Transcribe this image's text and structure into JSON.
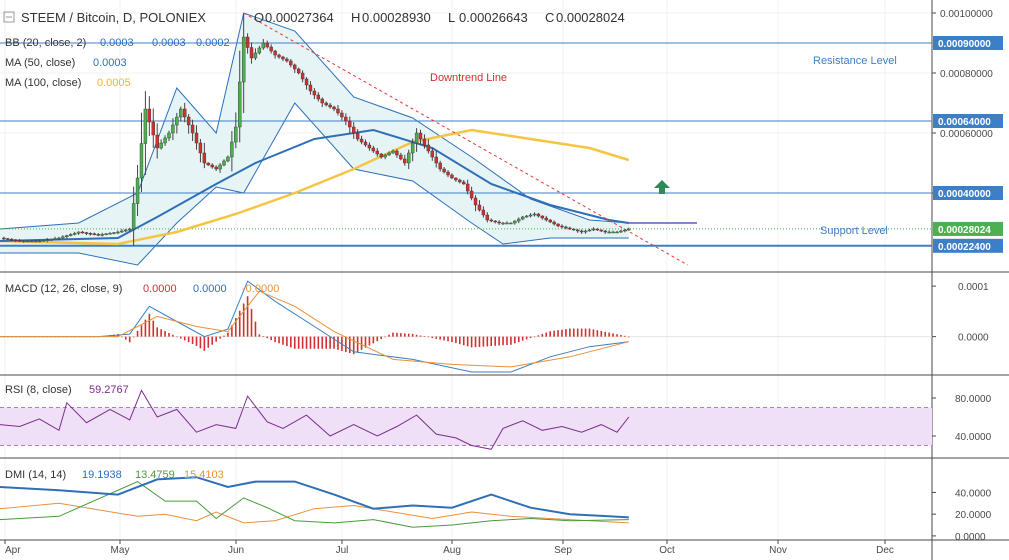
{
  "header": {
    "symbol": "STEEM / Bitcoin, D, POLONIEX",
    "ohlc": [
      {
        "key": "O",
        "value": "0.00027364"
      },
      {
        "key": "H",
        "value": "0.00028930"
      },
      {
        "key": "L",
        "value": "0.00026643"
      },
      {
        "key": "C",
        "value": "0.00028024"
      }
    ]
  },
  "legends": {
    "bb": {
      "name": "BB (20, close, 2)",
      "values": [
        "0.0003",
        "0.0003",
        "0.0002"
      ]
    },
    "ma50": {
      "name": "MA (50, close)",
      "value": "0.0003"
    },
    "ma100": {
      "name": "MA (100, close)",
      "value": "0.0005"
    },
    "macd": {
      "name": "MACD (12, 26, close, 9)",
      "values": [
        "0.0000",
        "0.0000",
        "-0.0000"
      ]
    },
    "rsi": {
      "name": "RSI (8, close)",
      "value": "59.2767"
    },
    "dmi": {
      "name": "DMI (14, 14)",
      "values": [
        "19.1938",
        "13.4759",
        "15.4103"
      ]
    }
  },
  "annotations": {
    "resistance": "Resistance Level",
    "support": "Support Level",
    "downtrend": "Downtrend Line"
  },
  "colors": {
    "up": "#4caf50",
    "down": "#d32f2f",
    "bb": "#2e6fb8",
    "ma50": "#2e6fb8",
    "ma100": "#f5c542",
    "hline": "#3d7fc6",
    "macd_line": "#3d7fc6",
    "signal_line": "#e8913a",
    "hist": "#d32f2f",
    "rsi": "#7b2d8e",
    "rsi_band": "#efe0f7",
    "dmi_plus": "#4a9a3c",
    "dmi_minus": "#e8913a",
    "adx": "#2e6fb8",
    "arrow": "#2e8b57"
  },
  "chart_data": [
    {
      "type": "candlestick",
      "title": "STEEM / Bitcoin, D, POLONIEX",
      "ylim": [
        0.00015,
        0.00103
      ],
      "y_ticks": [
        "0.00100000",
        "0.00080000",
        "0.00060000",
        "0.00040000"
      ],
      "x_ticks": [
        "Apr",
        "May",
        "Jun",
        "Jul",
        "Aug",
        "Sep",
        "Oct",
        "Nov",
        "Dec"
      ],
      "price_path": [
        [
          0,
          0.00025
        ],
        [
          5,
          0.00024
        ],
        [
          10,
          0.00024
        ],
        [
          15,
          0.00025
        ],
        [
          20,
          0.00027
        ],
        [
          25,
          0.00026
        ],
        [
          30,
          0.00027
        ],
        [
          33,
          0.00028
        ],
        [
          35,
          0.00045
        ],
        [
          37,
          0.00068
        ],
        [
          40,
          0.00055
        ],
        [
          43,
          0.0006
        ],
        [
          46,
          0.00068
        ],
        [
          49,
          0.0006
        ],
        [
          52,
          0.0005
        ],
        [
          55,
          0.00048
        ],
        [
          58,
          0.00052
        ],
        [
          60,
          0.00062
        ],
        [
          62,
          0.00092
        ],
        [
          64,
          0.00085
        ],
        [
          67,
          0.0009
        ],
        [
          70,
          0.00086
        ],
        [
          73,
          0.00084
        ],
        [
          76,
          0.0008
        ],
        [
          79,
          0.00074
        ],
        [
          82,
          0.0007
        ],
        [
          85,
          0.00068
        ],
        [
          88,
          0.00064
        ],
        [
          91,
          0.00058
        ],
        [
          94,
          0.00055
        ],
        [
          97,
          0.00052
        ],
        [
          100,
          0.00054
        ],
        [
          103,
          0.0005
        ],
        [
          106,
          0.0006
        ],
        [
          109,
          0.00054
        ],
        [
          112,
          0.00048
        ],
        [
          115,
          0.00045
        ],
        [
          118,
          0.00043
        ],
        [
          121,
          0.00036
        ],
        [
          124,
          0.00031
        ],
        [
          127,
          0.0003
        ],
        [
          130,
          0.0003
        ],
        [
          133,
          0.00032
        ],
        [
          136,
          0.00033
        ],
        [
          139,
          0.00031
        ],
        [
          142,
          0.00029
        ],
        [
          145,
          0.00028
        ],
        [
          148,
          0.00027
        ],
        [
          151,
          0.00028
        ],
        [
          154,
          0.00027
        ],
        [
          157,
          0.00027
        ],
        [
          160,
          0.00028
        ]
      ],
      "bb_upper": [
        [
          0,
          0.00028
        ],
        [
          20,
          0.0003
        ],
        [
          35,
          0.0004
        ],
        [
          45,
          0.00075
        ],
        [
          55,
          0.0006
        ],
        [
          62,
          0.001
        ],
        [
          75,
          0.00094
        ],
        [
          90,
          0.00072
        ],
        [
          105,
          0.00065
        ],
        [
          120,
          0.00052
        ],
        [
          135,
          0.00038
        ],
        [
          150,
          0.00031
        ],
        [
          160,
          0.0003
        ]
      ],
      "bb_lower": [
        [
          0,
          0.0002
        ],
        [
          20,
          0.0002
        ],
        [
          35,
          0.00016
        ],
        [
          45,
          0.0003
        ],
        [
          55,
          0.00042
        ],
        [
          62,
          0.0004
        ],
        [
          75,
          0.0007
        ],
        [
          90,
          0.00048
        ],
        [
          105,
          0.00044
        ],
        [
          120,
          0.0003
        ],
        [
          128,
          0.00023
        ],
        [
          140,
          0.00025
        ],
        [
          160,
          0.00025
        ]
      ],
      "ma50": [
        [
          0,
          0.00024
        ],
        [
          30,
          0.00025
        ],
        [
          40,
          0.00032
        ],
        [
          55,
          0.00043
        ],
        [
          65,
          0.0005
        ],
        [
          80,
          0.00058
        ],
        [
          95,
          0.00061
        ],
        [
          110,
          0.00055
        ],
        [
          125,
          0.00043
        ],
        [
          140,
          0.00036
        ],
        [
          155,
          0.00031
        ],
        [
          160,
          0.0003
        ]
      ],
      "ma100": [
        [
          0,
          0.00024
        ],
        [
          30,
          0.00023
        ],
        [
          45,
          0.00027
        ],
        [
          60,
          0.00033
        ],
        [
          75,
          0.0004
        ],
        [
          90,
          0.00048
        ],
        [
          105,
          0.00057
        ],
        [
          120,
          0.00061
        ],
        [
          135,
          0.00058
        ],
        [
          150,
          0.00055
        ],
        [
          160,
          0.00051
        ]
      ],
      "resistance_1": 0.0009,
      "resistance_2": 0.00064,
      "resistance_3": 0.0004,
      "last_price": 0.00028024,
      "support": 0.000224,
      "downtrend_line": [
        [
          62,
          0.001
        ],
        [
          175,
          0.00016
        ]
      ]
    },
    {
      "type": "line",
      "title": "MACD (12, 26, close, 9)",
      "ylim": [
        -7e-05,
        0.00012
      ],
      "y_ticks": [
        "0.0001",
        "0.0000"
      ],
      "macd": [
        [
          0,
          0.0
        ],
        [
          25,
          0.0
        ],
        [
          33,
          5e-06
        ],
        [
          38,
          6e-05
        ],
        [
          45,
          3e-05
        ],
        [
          52,
          0.0
        ],
        [
          58,
          1.5e-05
        ],
        [
          63,
          0.00011
        ],
        [
          70,
          7e-05
        ],
        [
          80,
          2e-05
        ],
        [
          90,
          -3e-05
        ],
        [
          105,
          -4.5e-05
        ],
        [
          120,
          -7e-05
        ],
        [
          130,
          -7e-05
        ],
        [
          140,
          -4e-05
        ],
        [
          150,
          -2e-05
        ],
        [
          160,
          -1e-05
        ]
      ],
      "signal": [
        [
          0,
          0.0
        ],
        [
          30,
          0.0
        ],
        [
          40,
          4e-05
        ],
        [
          50,
          2e-05
        ],
        [
          58,
          1e-05
        ],
        [
          66,
          9e-05
        ],
        [
          75,
          6e-05
        ],
        [
          85,
          1e-05
        ],
        [
          100,
          -4.5e-05
        ],
        [
          115,
          -5.5e-05
        ],
        [
          130,
          -6e-05
        ],
        [
          145,
          -4e-05
        ],
        [
          160,
          -1e-05
        ]
      ]
    },
    {
      "type": "line",
      "title": "RSI (8, close)",
      "ylim": [
        20,
        100
      ],
      "y_ticks": [
        "80.0000",
        "40.0000"
      ],
      "band": [
        30,
        70
      ],
      "rsi": [
        [
          0,
          52
        ],
        [
          5,
          50
        ],
        [
          10,
          58
        ],
        [
          15,
          46
        ],
        [
          17,
          75
        ],
        [
          22,
          54
        ],
        [
          28,
          68
        ],
        [
          33,
          57
        ],
        [
          36,
          88
        ],
        [
          40,
          60
        ],
        [
          45,
          68
        ],
        [
          50,
          44
        ],
        [
          55,
          52
        ],
        [
          60,
          48
        ],
        [
          63,
          82
        ],
        [
          68,
          55
        ],
        [
          72,
          48
        ],
        [
          78,
          62
        ],
        [
          84,
          40
        ],
        [
          90,
          52
        ],
        [
          96,
          40
        ],
        [
          101,
          50
        ],
        [
          106,
          62
        ],
        [
          111,
          42
        ],
        [
          116,
          38
        ],
        [
          120,
          30
        ],
        [
          125,
          26
        ],
        [
          128,
          48
        ],
        [
          133,
          56
        ],
        [
          138,
          46
        ],
        [
          143,
          50
        ],
        [
          148,
          44
        ],
        [
          153,
          52
        ],
        [
          157,
          44
        ],
        [
          160,
          60
        ]
      ]
    },
    {
      "type": "line",
      "title": "DMI (14, 14)",
      "ylim": [
        -1,
        68
      ],
      "y_ticks": [
        "40.0000",
        "20.0000",
        "0.0000"
      ],
      "adx": [
        [
          0,
          45
        ],
        [
          15,
          42
        ],
        [
          30,
          38
        ],
        [
          40,
          52
        ],
        [
          50,
          54
        ],
        [
          58,
          45
        ],
        [
          65,
          50
        ],
        [
          75,
          50
        ],
        [
          85,
          38
        ],
        [
          95,
          25
        ],
        [
          105,
          28
        ],
        [
          115,
          26
        ],
        [
          125,
          38
        ],
        [
          135,
          26
        ],
        [
          145,
          20
        ],
        [
          155,
          18
        ],
        [
          160,
          17
        ]
      ],
      "plus_di": [
        [
          0,
          15
        ],
        [
          15,
          18
        ],
        [
          35,
          50
        ],
        [
          42,
          32
        ],
        [
          50,
          32
        ],
        [
          55,
          16
        ],
        [
          62,
          35
        ],
        [
          68,
          26
        ],
        [
          75,
          14
        ],
        [
          85,
          12
        ],
        [
          95,
          15
        ],
        [
          105,
          8
        ],
        [
          115,
          10
        ],
        [
          125,
          14
        ],
        [
          135,
          16
        ],
        [
          145,
          14
        ],
        [
          160,
          15
        ]
      ],
      "minus_di": [
        [
          0,
          25
        ],
        [
          15,
          30
        ],
        [
          35,
          18
        ],
        [
          42,
          20
        ],
        [
          50,
          14
        ],
        [
          55,
          22
        ],
        [
          62,
          12
        ],
        [
          70,
          14
        ],
        [
          80,
          25
        ],
        [
          90,
          28
        ],
        [
          100,
          22
        ],
        [
          110,
          16
        ],
        [
          120,
          22
        ],
        [
          130,
          18
        ],
        [
          140,
          16
        ],
        [
          150,
          14
        ],
        [
          160,
          12
        ]
      ]
    }
  ]
}
